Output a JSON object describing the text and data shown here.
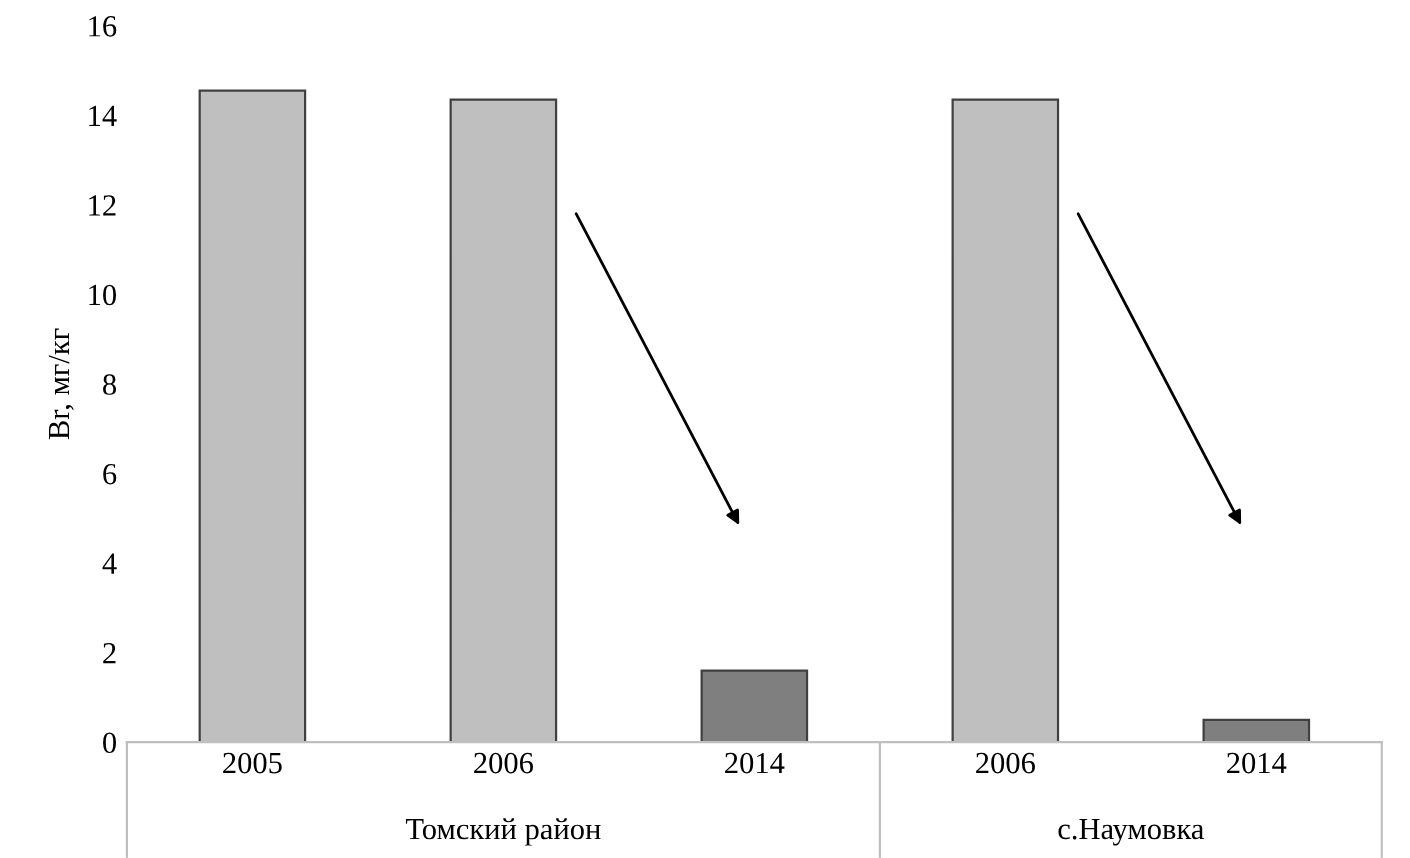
{
  "chart_data": {
    "type": "bar",
    "categories": [
      "2005",
      "2006",
      "2014",
      "2006",
      "2014"
    ],
    "values": [
      14.55,
      14.35,
      1.6,
      14.35,
      0.5
    ],
    "colors": [
      "#bfbfbf",
      "#bfbfbf",
      "#7f7f7f",
      "#bfbfbf",
      "#7f7f7f"
    ],
    "ylabel": "Br, мг/кг",
    "ylim": [
      0,
      16
    ],
    "yticks": [
      0,
      2,
      4,
      6,
      8,
      10,
      12,
      14,
      16
    ],
    "annotations": [
      "Томский район",
      "с.Наумовка"
    ],
    "grid": false,
    "legend": false
  }
}
